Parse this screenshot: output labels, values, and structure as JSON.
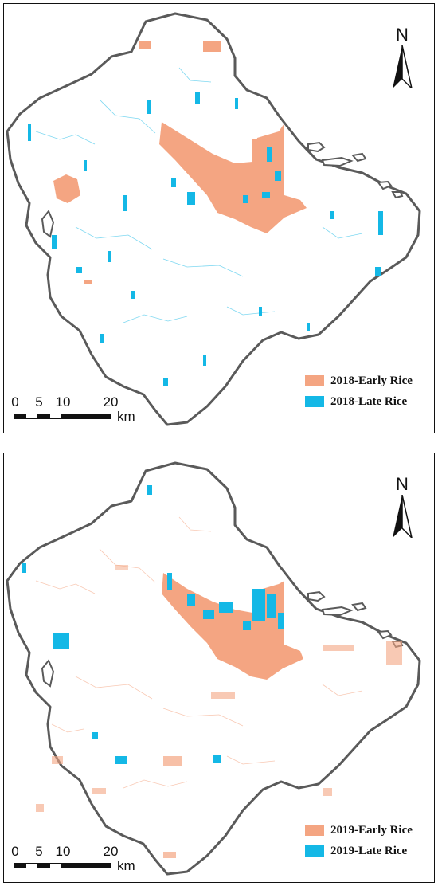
{
  "colors": {
    "early_rice": "#f4a582",
    "late_rice": "#14b8e6",
    "boundary": "#5a5a5a"
  },
  "panels": [
    {
      "north_label": "N",
      "legend": [
        {
          "label": "2018-Early Rice",
          "color": "#f4a582"
        },
        {
          "label": "2018-Late Rice",
          "color": "#14b8e6"
        }
      ],
      "scale": {
        "ticks": [
          "0",
          "5",
          "10",
          "20"
        ],
        "unit": "km"
      }
    },
    {
      "north_label": "N",
      "legend": [
        {
          "label": "2019-Early Rice",
          "color": "#f4a582"
        },
        {
          "label": "2019-Late Rice",
          "color": "#14b8e6"
        }
      ],
      "scale": {
        "ticks": [
          "0",
          "5",
          "10",
          "20"
        ],
        "unit": "km"
      }
    }
  ]
}
